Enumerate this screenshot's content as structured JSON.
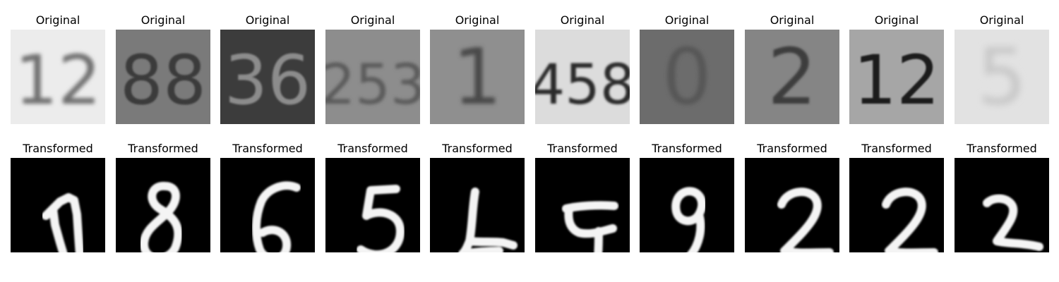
{
  "rows": [
    {
      "title": "Original",
      "panels": [
        {
          "text": "12",
          "bg": "#ececec",
          "fg": "#6f6f6f",
          "blur": 3.0
        },
        {
          "text": "88",
          "bg": "#7a7a7a",
          "fg": "#3a3a3a",
          "blur": 1.4
        },
        {
          "text": "36",
          "bg": "#3c3c3c",
          "fg": "#8c8c8c",
          "blur": 1.2
        },
        {
          "text": "253",
          "bg": "#8d8d8d",
          "fg": "#5a5a5a",
          "blur": 2.5
        },
        {
          "text": "1",
          "bg": "#8f8f8f",
          "fg": "#4a4a4a",
          "blur": 3.0
        },
        {
          "text": "458",
          "bg": "#dcdcdc",
          "fg": "#2c2c2c",
          "blur": 1.6
        },
        {
          "text": "0",
          "bg": "#6c6c6c",
          "fg": "#575757",
          "blur": 3.0
        },
        {
          "text": "2",
          "bg": "#858585",
          "fg": "#3c3c3c",
          "blur": 1.5
        },
        {
          "text": "12",
          "bg": "#a6a6a6",
          "fg": "#1c1c1c",
          "blur": 1.0
        },
        {
          "text": "5",
          "bg": "#e2e2e2",
          "fg": "#c6c6c6",
          "blur": 5.0
        }
      ]
    },
    {
      "title": "Transformed",
      "panels": [
        {
          "glyph": "1"
        },
        {
          "glyph": "8"
        },
        {
          "glyph": "6"
        },
        {
          "glyph": "5"
        },
        {
          "glyph": "1b"
        },
        {
          "glyph": "4"
        },
        {
          "glyph": "9"
        },
        {
          "glyph": "2"
        },
        {
          "glyph": "2"
        },
        {
          "glyph": "2b"
        }
      ]
    }
  ]
}
